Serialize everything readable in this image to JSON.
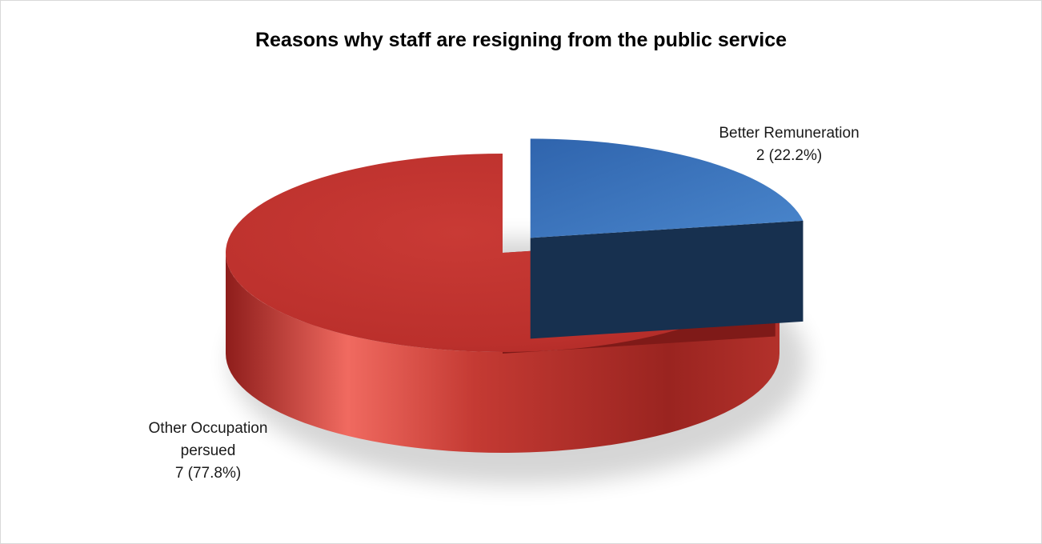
{
  "chart_data": {
    "type": "pie",
    "title": "Reasons why staff are resigning from the public service",
    "slices": [
      {
        "name": "Better Remuneration",
        "value": 2,
        "percent": "22.2%",
        "value_label": "2 (22.2%)",
        "color": "#3a6fb7",
        "exploded": true
      },
      {
        "name": "Other Occupation persued",
        "name_lines": [
          "Other Occupation",
          "persued"
        ],
        "value": 7,
        "percent": "77.8%",
        "value_label": "7 (77.8%)",
        "color": "#c0392b",
        "exploded": false
      }
    ],
    "legend": "none",
    "style": "3d-exploded"
  }
}
